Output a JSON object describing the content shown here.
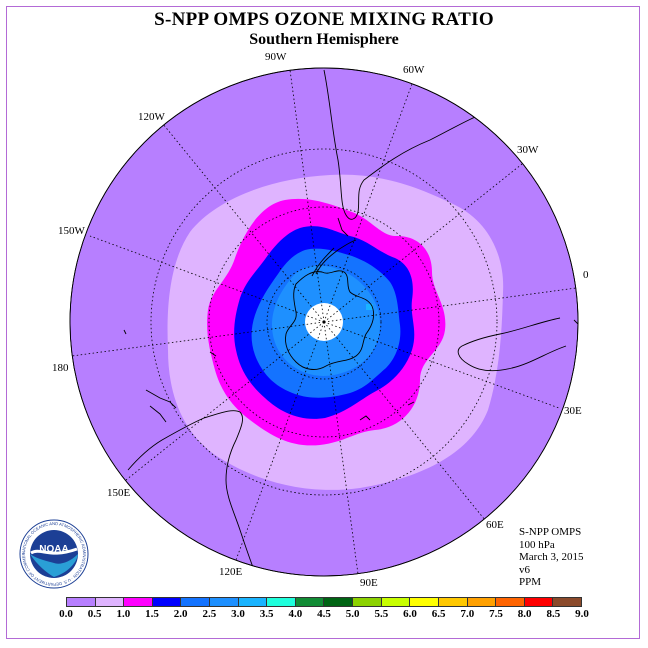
{
  "header": {
    "title": "S-NPP OMPS OZONE MIXING RATIO",
    "subtitle": "Southern Hemisphere"
  },
  "map": {
    "projection": "south-polar-stereographic",
    "longitude_labels": [
      "0",
      "30E",
      "60E",
      "90E",
      "120E",
      "150E",
      "180",
      "150W",
      "120W",
      "90W",
      "60W",
      "30W"
    ]
  },
  "info": {
    "instrument": "S-NPP OMPS",
    "level": "100 hPa",
    "date": "March 3, 2015",
    "version": "v6",
    "units": "PPM"
  },
  "colorbar": {
    "ticks": [
      "0.0",
      "0.5",
      "1.0",
      "1.5",
      "2.0",
      "2.5",
      "3.0",
      "3.5",
      "4.0",
      "4.5",
      "5.0",
      "5.5",
      "6.0",
      "6.5",
      "7.0",
      "7.5",
      "8.0",
      "8.5",
      "9.0"
    ],
    "colors": [
      "#b77fff",
      "#dfb4ff",
      "#ff00ff",
      "#0000ff",
      "#1473ff",
      "#1e90ff",
      "#1ab4ff",
      "#1fffdc",
      "#118c35",
      "#006414",
      "#8cd200",
      "#c8ff00",
      "#ffff00",
      "#ffc800",
      "#ffa000",
      "#ff6400",
      "#ff0000",
      "#8b4a2b"
    ]
  },
  "logo": {
    "text": "NOAA",
    "ring_text": "NATIONAL OCEANIC AND ATMOSPHERIC ADMINISTRATION · U.S. DEPARTMENT OF COMMERCE"
  }
}
